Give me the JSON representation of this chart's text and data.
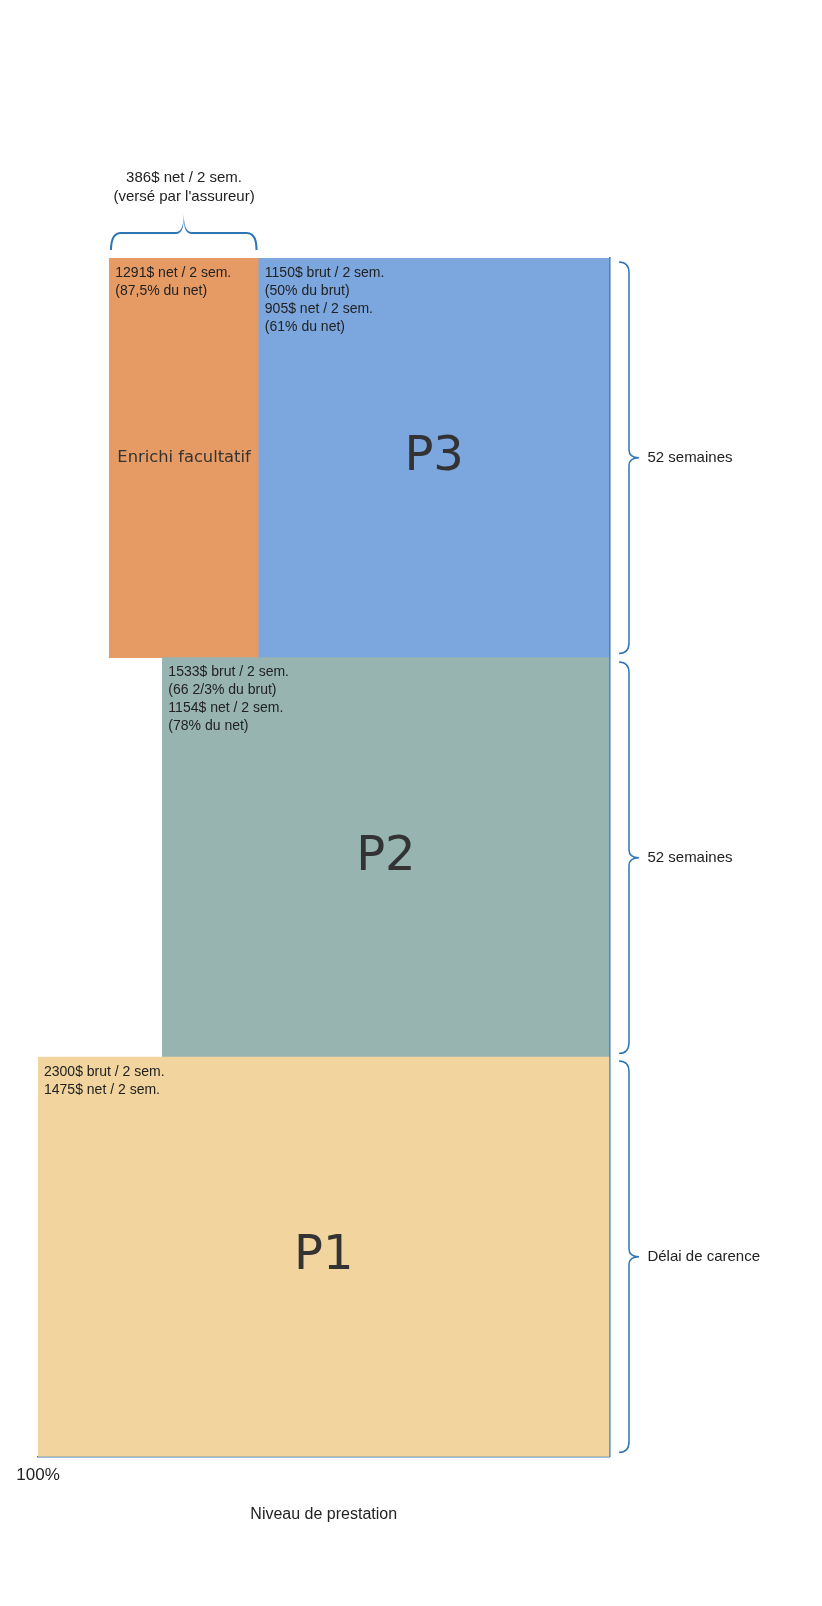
{
  "chart_data": {
    "type": "bar",
    "orientation": "horizontal",
    "stacked": true,
    "categories": [
      "52 semaines",
      "52 semaines",
      "Délai de carence"
    ],
    "xlabel": "Niveau de prestation",
    "xlim": [
      1475,
      0
    ],
    "series": [
      {
        "name": "P1",
        "color": "#f1d49e",
        "values": [
          null,
          null,
          1475
        ],
        "value_labels": [
          null,
          null,
          "2300$ brut / 2 sem.\n1475$ net / 2 sem."
        ]
      },
      {
        "name": "P2",
        "color": "#97b4b1",
        "values": [
          null,
          1154,
          null
        ],
        "value_labels": [
          null,
          "1533$ brut / 2 sem.\n(66 2/3% du brut)\n1154$ net / 2 sem.\n(78% du net)",
          null
        ]
      },
      {
        "name": "P3",
        "color": "#7ba6de",
        "values": [
          905,
          null,
          null
        ],
        "value_labels": [
          "1150$ brut / 2 sem.\n(50% du brut)\n905$ net / 2 sem.\n(61% du net)",
          null,
          null
        ]
      },
      {
        "name": "Enrichi facultatif",
        "color": "#e69b65",
        "values": [
          386,
          null,
          null
        ]
      }
    ],
    "totals": [
      "1291$ net / 2 sem.\n(87,5% du net)",
      null,
      null
    ],
    "annotations": [
      "386$ net / 2 sem.\n(versé par l'assureur)",
      "100%"
    ]
  }
}
